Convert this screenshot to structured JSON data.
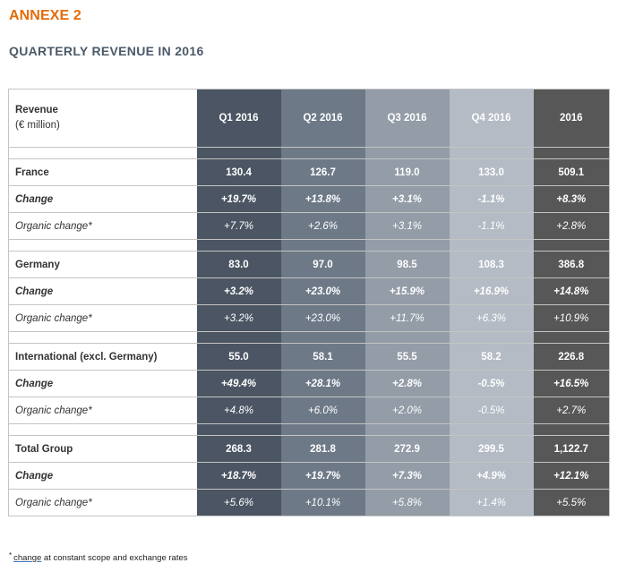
{
  "annexe_title": "ANNEXE 2",
  "subtitle": "QUARTERLY REVENUE IN 2016",
  "header": {
    "label_line1": "Revenue",
    "label_line2": "(€ million)",
    "columns": [
      "Q1 2016",
      "Q2 2016",
      "Q3 2016",
      "Q4 2016",
      "2016"
    ]
  },
  "groups": [
    {
      "name": "France",
      "values": [
        "130.4",
        "126.7",
        "119.0",
        "133.0",
        "509.1"
      ],
      "change_label": "Change",
      "change": [
        "+19.7%",
        "+13.8%",
        "+3.1%",
        "-1.1%",
        "+8.3%"
      ],
      "organic_label": "Organic change*",
      "organic": [
        "+7.7%",
        "+2.6%",
        "+3.1%",
        "-1.1%",
        "+2.8%"
      ]
    },
    {
      "name": "Germany",
      "values": [
        "83.0",
        "97.0",
        "98.5",
        "108.3",
        "386.8"
      ],
      "change_label": "Change",
      "change": [
        "+3.2%",
        "+23.0%",
        "+15.9%",
        "+16.9%",
        "+14.8%"
      ],
      "organic_label": "Organic change*",
      "organic": [
        "+3.2%",
        "+23.0%",
        "+11.7%",
        "+6.3%",
        "+10.9%"
      ]
    },
    {
      "name": "International (excl. Germany)",
      "values": [
        "55.0",
        "58.1",
        "55.5",
        "58.2",
        "226.8"
      ],
      "change_label": "Change",
      "change": [
        "+49.4%",
        "+28.1%",
        "+2.8%",
        "-0.5%",
        "+16.5%"
      ],
      "organic_label": "Organic change*",
      "organic": [
        "+4.8%",
        "+6.0%",
        "+2.0%",
        "-0.5%",
        "+2.7%"
      ]
    },
    {
      "name": "Total Group",
      "values": [
        "268.3",
        "281.8",
        "272.9",
        "299.5",
        "1,122.7"
      ],
      "change_label": "Change",
      "change": [
        "+18.7%",
        "+19.7%",
        "+7.3%",
        "+4.9%",
        "+12.1%"
      ],
      "organic_label": "Organic change*",
      "organic": [
        "+5.6%",
        "+10.1%",
        "+5.8%",
        "+1.4%",
        "+5.5%"
      ]
    }
  ],
  "footnote": {
    "star": "*",
    "underlined": "change",
    "rest": " at constant scope and exchange rates"
  }
}
